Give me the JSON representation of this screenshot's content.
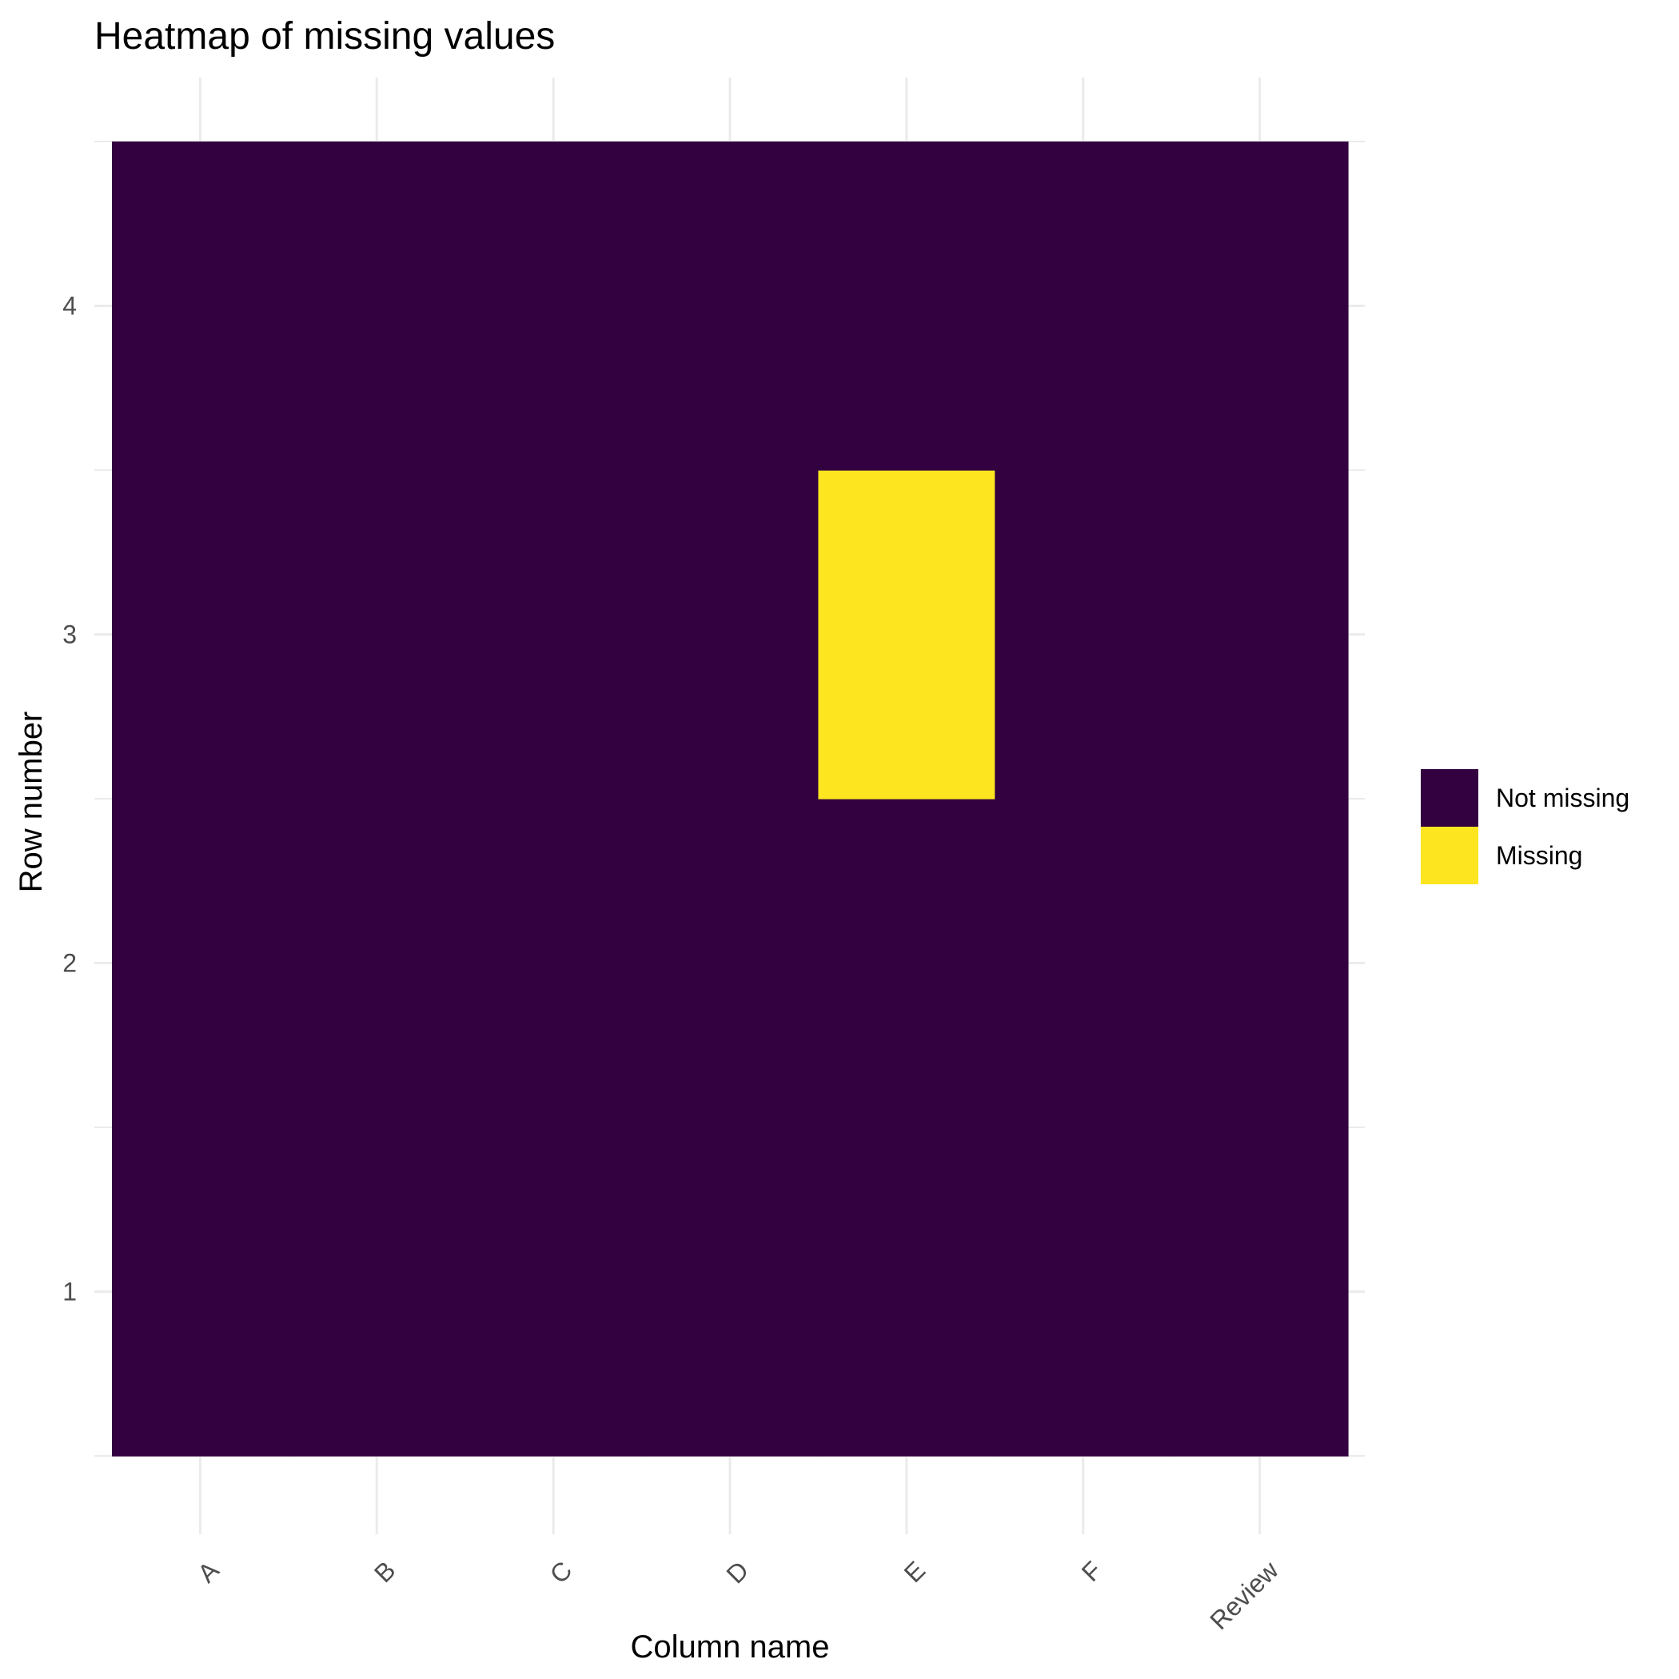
{
  "chart_data": {
    "type": "heatmap",
    "title": "Heatmap of missing values",
    "xlabel": "Column name",
    "ylabel": "Row number",
    "x_categories": [
      "A",
      "B",
      "C",
      "D",
      "E",
      "F",
      "Review"
    ],
    "y_categories": [
      "1",
      "2",
      "3",
      "4"
    ],
    "cells": [
      {
        "column": "A",
        "row": 1,
        "status": "Not missing"
      },
      {
        "column": "A",
        "row": 2,
        "status": "Not missing"
      },
      {
        "column": "A",
        "row": 3,
        "status": "Not missing"
      },
      {
        "column": "A",
        "row": 4,
        "status": "Not missing"
      },
      {
        "column": "B",
        "row": 1,
        "status": "Not missing"
      },
      {
        "column": "B",
        "row": 2,
        "status": "Not missing"
      },
      {
        "column": "B",
        "row": 3,
        "status": "Not missing"
      },
      {
        "column": "B",
        "row": 4,
        "status": "Not missing"
      },
      {
        "column": "C",
        "row": 1,
        "status": "Not missing"
      },
      {
        "column": "C",
        "row": 2,
        "status": "Not missing"
      },
      {
        "column": "C",
        "row": 3,
        "status": "Not missing"
      },
      {
        "column": "C",
        "row": 4,
        "status": "Not missing"
      },
      {
        "column": "D",
        "row": 1,
        "status": "Not missing"
      },
      {
        "column": "D",
        "row": 2,
        "status": "Not missing"
      },
      {
        "column": "D",
        "row": 3,
        "status": "Not missing"
      },
      {
        "column": "D",
        "row": 4,
        "status": "Not missing"
      },
      {
        "column": "E",
        "row": 1,
        "status": "Not missing"
      },
      {
        "column": "E",
        "row": 2,
        "status": "Not missing"
      },
      {
        "column": "E",
        "row": 3,
        "status": "Missing"
      },
      {
        "column": "E",
        "row": 4,
        "status": "Not missing"
      },
      {
        "column": "F",
        "row": 1,
        "status": "Not missing"
      },
      {
        "column": "F",
        "row": 2,
        "status": "Not missing"
      },
      {
        "column": "F",
        "row": 3,
        "status": "Not missing"
      },
      {
        "column": "F",
        "row": 4,
        "status": "Not missing"
      },
      {
        "column": "Review",
        "row": 1,
        "status": "Not missing"
      },
      {
        "column": "Review",
        "row": 2,
        "status": "Not missing"
      },
      {
        "column": "Review",
        "row": 3,
        "status": "Not missing"
      },
      {
        "column": "Review",
        "row": 4,
        "status": "Not missing"
      }
    ],
    "legend": {
      "position": "right",
      "items": [
        {
          "label": "Not missing",
          "color": "#330040"
        },
        {
          "label": "Missing",
          "color": "#FDE620"
        }
      ]
    },
    "x_tick_rotation": "45 degrees",
    "grid": true,
    "background": "#ffffff"
  }
}
